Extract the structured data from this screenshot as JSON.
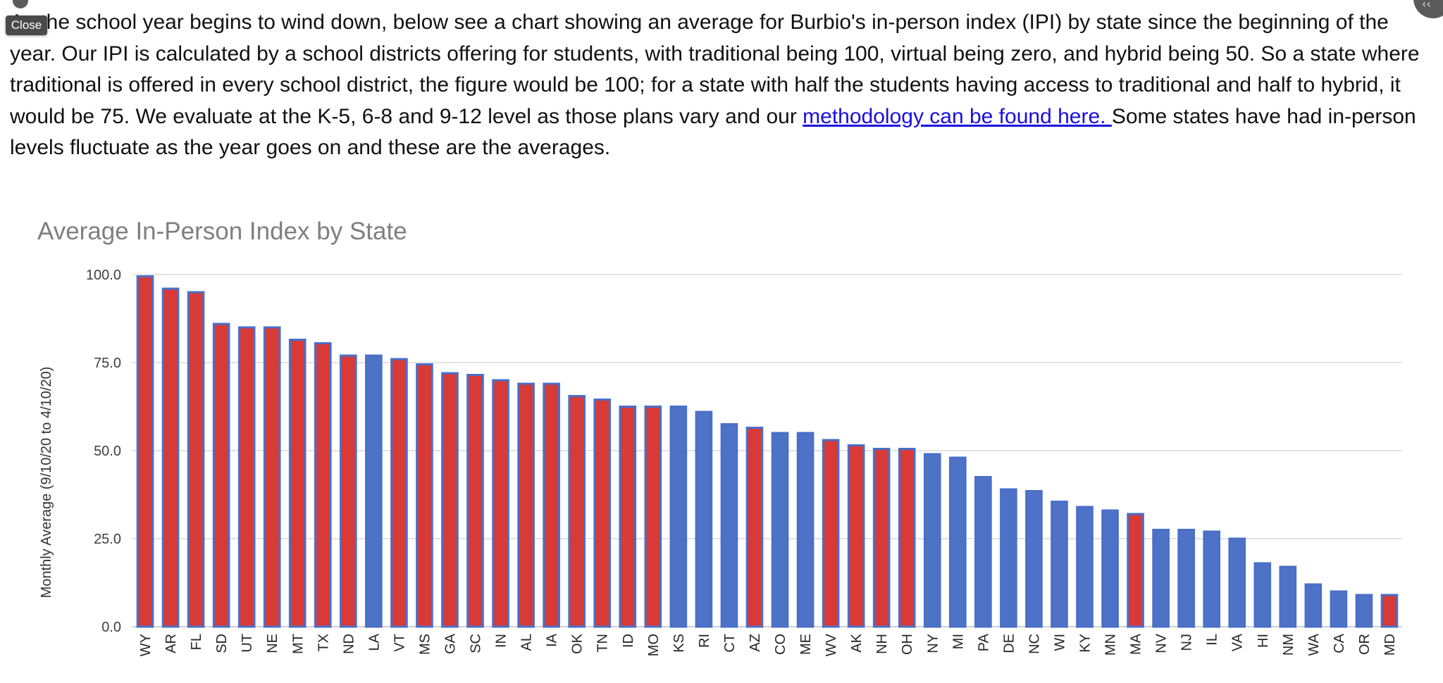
{
  "intro": {
    "text_before_link": "As the school year begins to wind down, below see a chart showing an average for Burbio's in-person index (IPI) by state since the beginning of the year. Our IPI is calculated by a school districts offering for students, with traditional being 100, virtual being zero, and hybrid being 50. So a state where traditional is offered in every school district, the figure would be 100; for a state with half the students having access to traditional and half to hybrid, it would be 75. We evaluate at the K-5, 6-8 and 9-12 level as those plans vary and our ",
    "link_text": "methodology can be found here. ",
    "text_after_link": "Some states have had in-person levels fluctuate as the year goes on and these are the averages."
  },
  "overlay": {
    "close_label": "Close",
    "corner_icon": "chevron-left-icon"
  },
  "colors": {
    "red": "#d73a37",
    "blue": "#4e73c6",
    "outline": "#4a6fc8",
    "grid": "#d9d9d9",
    "title": "#7f7f7f"
  },
  "chart_data": {
    "type": "bar",
    "title": "Average In-Person Index by State",
    "ylabel": "Monthly Average (9/10/20 to 4/10/20)",
    "xlabel": "",
    "ylim": [
      0,
      100
    ],
    "yticks": [
      "0.0",
      "25.0",
      "50.0",
      "75.0",
      "100.0"
    ],
    "grid": true,
    "categories": [
      "WY",
      "AR",
      "FL",
      "SD",
      "UT",
      "NE",
      "MT",
      "TX",
      "ND",
      "LA",
      "VT",
      "MS",
      "GA",
      "SC",
      "IN",
      "AL",
      "IA",
      "OK",
      "TN",
      "ID",
      "MO",
      "KS",
      "RI",
      "CT",
      "AZ",
      "CO",
      "ME",
      "WV",
      "AK",
      "NH",
      "OH",
      "NY",
      "MI",
      "PA",
      "DE",
      "NC",
      "WI",
      "KY",
      "MN",
      "MA",
      "NV",
      "NJ",
      "IL",
      "VA",
      "HI",
      "NM",
      "WA",
      "CA",
      "OR",
      "MD"
    ],
    "values": [
      99.5,
      96,
      95,
      86,
      85,
      85,
      81.5,
      80.5,
      77,
      77,
      76,
      74.5,
      72,
      71.5,
      70,
      69,
      69,
      65.5,
      64.5,
      62.5,
      62.5,
      62.5,
      61,
      57.5,
      56.5,
      55,
      55,
      53,
      51.5,
      50.5,
      50.5,
      49,
      48,
      42.5,
      39,
      38.5,
      35.5,
      34,
      33,
      32,
      27.5,
      27.5,
      27,
      25,
      18,
      17,
      12,
      10,
      9,
      9
    ],
    "bar_colors": [
      "red",
      "red",
      "red",
      "red",
      "red",
      "red",
      "red",
      "red",
      "red",
      "blue",
      "red",
      "red",
      "red",
      "red",
      "red",
      "red",
      "red",
      "red",
      "red",
      "red",
      "red",
      "blue",
      "blue",
      "blue",
      "red",
      "blue",
      "blue",
      "red",
      "red",
      "red",
      "red",
      "blue",
      "blue",
      "blue",
      "blue",
      "blue",
      "blue",
      "blue",
      "blue",
      "red",
      "blue",
      "blue",
      "blue",
      "blue",
      "blue",
      "blue",
      "blue",
      "blue",
      "blue",
      "red"
    ]
  }
}
